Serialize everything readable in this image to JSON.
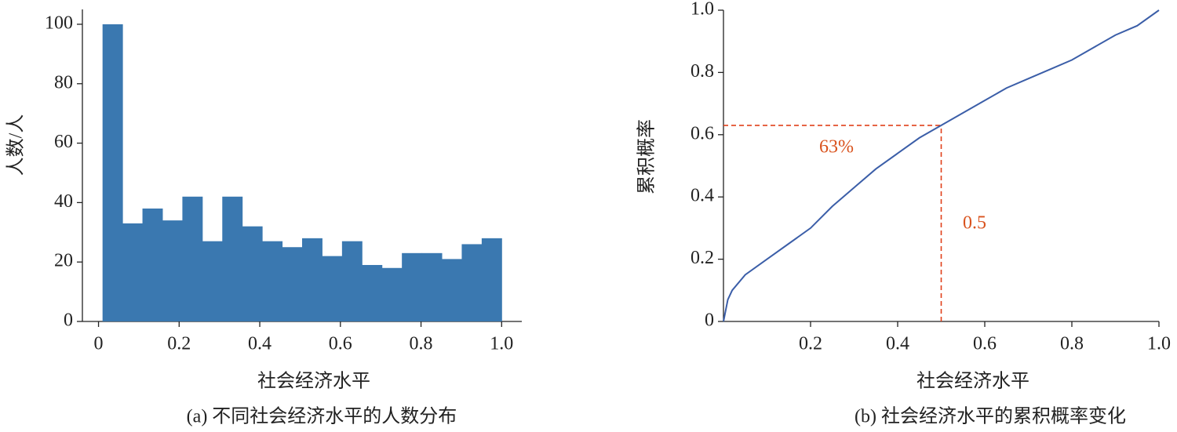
{
  "chart_data": [
    {
      "type": "histogram",
      "xlabel": "社会经济水平",
      "ylabel": "人数/人",
      "caption": "(a) 不同社会经济水平的人数分布",
      "bins": [
        0.01,
        0.0595,
        0.109,
        0.1585,
        0.208,
        0.2575,
        0.307,
        0.3565,
        0.406,
        0.4555,
        0.505,
        0.5545,
        0.604,
        0.6535,
        0.703,
        0.7525,
        0.802,
        0.8515,
        0.901,
        0.9505,
        1.0
      ],
      "values": [
        100,
        33,
        38,
        34,
        42,
        27,
        42,
        32,
        27,
        25,
        28,
        22,
        27,
        19,
        18,
        23,
        23,
        21,
        26,
        28
      ],
      "color": "#3a78b0",
      "xlim": [
        -0.04,
        1.05
      ],
      "ylim": [
        0,
        105
      ],
      "xticks": [
        0,
        0.2,
        0.4,
        0.6,
        0.8,
        {
          "value": 1,
          "label": "1.0"
        }
      ],
      "yticks": [
        0,
        20,
        40,
        60,
        80,
        100
      ]
    },
    {
      "type": "line",
      "xlabel": "社会经济水平",
      "ylabel": "累积概率",
      "caption": "(b) 社会经济水平的累积概率变化",
      "x": [
        0,
        0.01,
        0.02,
        0.05,
        0.1,
        0.15,
        0.2,
        0.25,
        0.3,
        0.35,
        0.4,
        0.45,
        0.5,
        0.55,
        0.6,
        0.65,
        0.7,
        0.75,
        0.8,
        0.85,
        0.9,
        0.95,
        1.0
      ],
      "values": [
        0,
        0.07,
        0.1,
        0.15,
        0.2,
        0.25,
        0.3,
        0.37,
        0.43,
        0.49,
        0.54,
        0.59,
        0.63,
        0.67,
        0.71,
        0.75,
        0.78,
        0.81,
        0.84,
        0.88,
        0.92,
        0.95,
        1.0
      ],
      "color": "#3b5ea8",
      "reference": {
        "x": 0.5,
        "y": 0.63
      },
      "reference_color": "#e0401a",
      "annotations": [
        "63%",
        "0.5"
      ],
      "xlim": [
        0,
        1
      ],
      "ylim": [
        0,
        1
      ],
      "xticks": [
        0.2,
        0.4,
        0.6,
        0.8,
        {
          "value": 1,
          "label": "1.0"
        }
      ],
      "yticks": [
        0,
        0.2,
        0.4,
        0.6,
        0.8,
        {
          "value": 1,
          "label": "1.0"
        }
      ]
    }
  ]
}
